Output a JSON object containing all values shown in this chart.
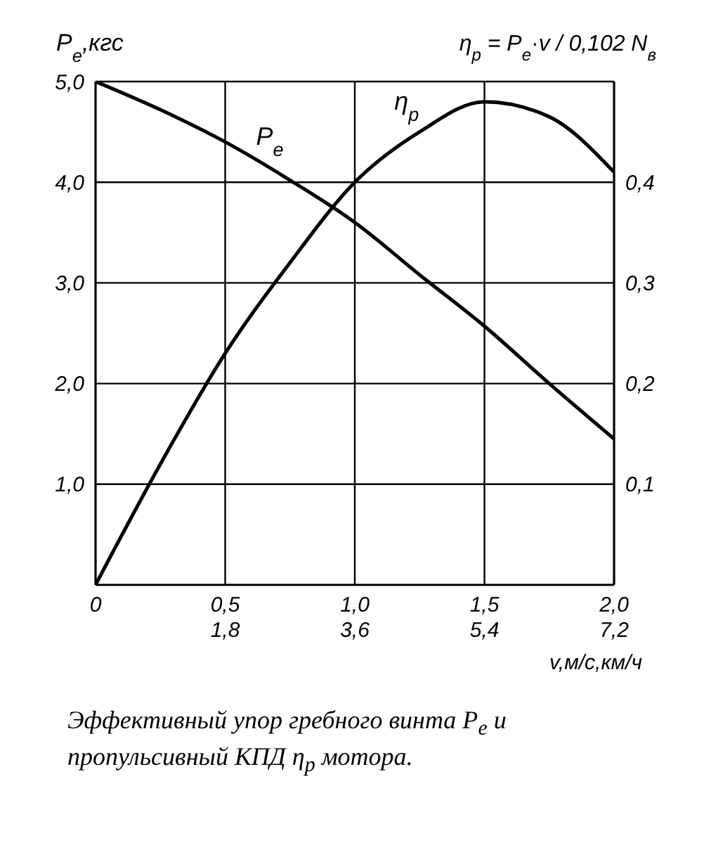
{
  "chart_data": {
    "type": "line",
    "ylabel": "P$_{e}$,кгс",
    "y2label": "η$_{p}$ = P$_{e}$·v / 0,102 N$_{в}$",
    "xlabel": "v,м/с,км/ч",
    "annotations": [
      "Эффективный упор гребного винта P$_{e}$ и пропульсивный КПД η$_{p}$ мотора."
    ],
    "x": [
      0,
      0.25,
      0.5,
      0.75,
      1.0,
      1.25,
      1.5,
      1.75,
      2.0
    ],
    "series": [
      {
        "name": "P$_{e}$",
        "color": "#000000",
        "values": [
          5.0,
          4.72,
          4.4,
          4.02,
          3.6,
          3.08,
          2.57,
          2.0,
          1.45
        ]
      },
      {
        "name": "η$_{p}$",
        "color": "#000000",
        "axis": "y2",
        "values": [
          0,
          0.12,
          0.23,
          0.32,
          0.4,
          0.45,
          0.48,
          0.465,
          0.41
        ]
      }
    ],
    "xlim": [
      0,
      2.0
    ],
    "xticks": [
      0,
      {
        "value": 0.5,
        "label": "0,5"
      },
      {
        "value": 1.0,
        "label": "1,0"
      },
      {
        "value": 1.5,
        "label": "1,5"
      },
      {
        "value": 2.0,
        "label": "2,0"
      }
    ],
    "x2lim": [
      0,
      7.2
    ],
    "x2ticks": [
      {
        "value": 1.8,
        "label": "1,8"
      },
      {
        "value": 3.6,
        "label": "3,6"
      },
      {
        "value": 5.4,
        "label": "5,4"
      },
      {
        "value": 7.2,
        "label": "7,2"
      }
    ],
    "ylim": [
      0,
      5.0
    ],
    "yticks": [
      {
        "value": 1.0,
        "label": "1,0"
      },
      {
        "value": 2.0,
        "label": "2,0"
      },
      {
        "value": 3.0,
        "label": "3,0"
      },
      {
        "value": 4.0,
        "label": "4,0"
      },
      {
        "value": 5.0,
        "label": "5,0"
      }
    ],
    "y2lim": [
      0,
      0.5
    ],
    "y2ticks": [
      {
        "value": 0.1,
        "label": "0,1"
      },
      {
        "value": 0.2,
        "label": "0,2"
      },
      {
        "value": 0.3,
        "label": "0,3"
      },
      {
        "value": 0.4,
        "label": "0,4"
      }
    ],
    "grid": true,
    "legend": false,
    "marker": "none",
    "line_style": "solid"
  }
}
